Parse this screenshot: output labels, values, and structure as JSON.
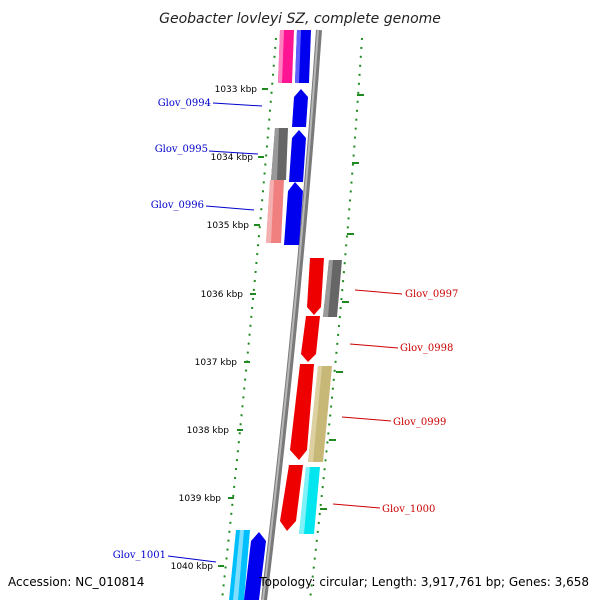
{
  "title": "Geobacter lovleyi SZ, complete genome",
  "accession_text": "Accession: NC_010814",
  "summary_text": "Topology: circular; Length: 3,917,761 bp; Genes: 3,658",
  "colors": {
    "backbone": "#8a8a8a",
    "ruler": "#1f8a1f",
    "forward_label": "#0000cc",
    "reverse_label": "#cc0000"
  },
  "ticks": [
    {
      "label": "1033 kbp"
    },
    {
      "label": "1034 kbp"
    },
    {
      "label": "1035 kbp"
    },
    {
      "label": "1036 kbp"
    },
    {
      "label": "1037 kbp"
    },
    {
      "label": "1038 kbp"
    },
    {
      "label": "1039 kbp"
    },
    {
      "label": "1040 kbp"
    }
  ],
  "gene_labels": [
    {
      "text": "Glov_0994",
      "strand": "left"
    },
    {
      "text": "Glov_0995",
      "strand": "left"
    },
    {
      "text": "Glov_0996",
      "strand": "left"
    },
    {
      "text": "Glov_0997",
      "strand": "right"
    },
    {
      "text": "Glov_0998",
      "strand": "right"
    },
    {
      "text": "Glov_0999",
      "strand": "right"
    },
    {
      "text": "Glov_1000",
      "strand": "right"
    },
    {
      "text": "Glov_1001",
      "strand": "left"
    }
  ]
}
